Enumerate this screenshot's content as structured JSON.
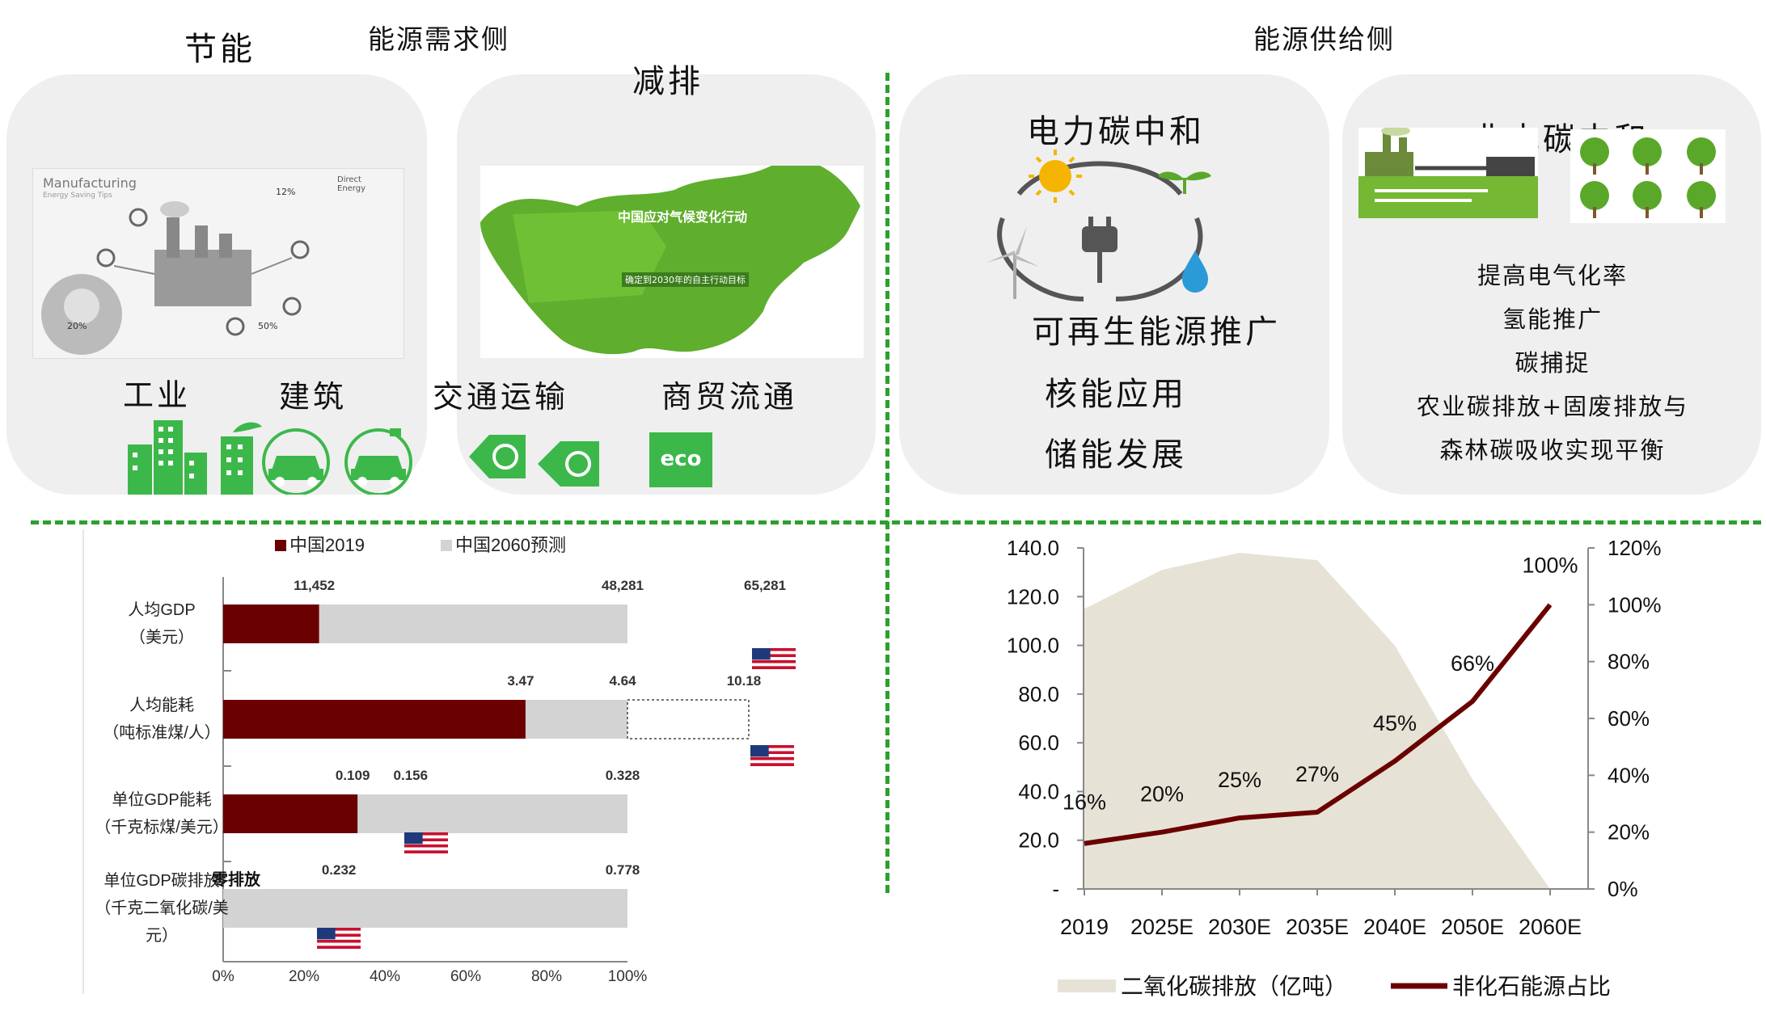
{
  "top": {
    "demand_header": "能源需求侧",
    "supply_header": "能源供给侧",
    "energy_saving": "节能",
    "emission_reduction": "减排",
    "manufacturing_title": "Manufacturing",
    "manufacturing_subtitle": "Energy Saving Tips",
    "manufacturing_brand": "Direct Energy",
    "manufacturing_pct1": "12%",
    "manufacturing_pct2": "20%",
    "manufacturing_pct3": "50%",
    "map_title": "中国应对气候变化行动",
    "map_subtitle": "确定到2030年的自主行动目标",
    "sectors": [
      "工业",
      "建筑",
      "交通运输",
      "商贸流通"
    ],
    "eco_label": "eco",
    "power_neutral": "电力碳中和",
    "renewable": "可再生能源推广",
    "nuclear": "核能应用",
    "storage": "储能发展",
    "nonpower_neutral": "非电碳中和",
    "nonpower_items": [
      "提高电气化率",
      "氢能推广",
      "碳捕捉",
      "农业碳排放+固废排放与",
      "森林碳吸收实现平衡"
    ]
  },
  "chart_data": [
    {
      "type": "bar",
      "orientation": "horizontal",
      "legend": [
        "中国2019",
        "中国2060预测"
      ],
      "legend_position": "top",
      "categories": [
        [
          "人均GDP",
          "（美元）"
        ],
        [
          "人均能耗",
          "（吨标准煤/人）"
        ],
        [
          "单位GDP能耗",
          "（千克标煤/美元）"
        ],
        [
          "单位GDP碳排放",
          "（千克二氧化碳/美",
          "元）"
        ]
      ],
      "series": [
        {
          "name": "中国2019",
          "values": [
            0.2372,
            0.7478,
            0.3323,
            0
          ],
          "color": "#6b0000"
        },
        {
          "name": "中国2060预测",
          "values": [
            1.0,
            1.0,
            1.0,
            1.0
          ],
          "color": "#d3d3d3"
        }
      ],
      "us_reference": [
        1.3521,
        1.3,
        0.4756,
        0.2982
      ],
      "outline_extension": [
        1,
        1.3,
        1,
        1
      ],
      "zero_label": "零排放",
      "value_labels": [
        {
          "text": "11,452",
          "row": 0,
          "at": 0.2372
        },
        {
          "text": "48,281",
          "row": 0,
          "at": 1.0
        },
        {
          "text": "65,281",
          "row": 0,
          "at": 1.3521
        },
        {
          "text": "3.47",
          "row": 1,
          "at": 0.7478
        },
        {
          "text": "4.64",
          "row": 1,
          "at": 1.0
        },
        {
          "text": "10.18",
          "row": 1,
          "at": 1.3
        },
        {
          "text": "0.109",
          "row": 2,
          "at": 0.3323
        },
        {
          "text": "0.156",
          "row": 2,
          "at": 0.4756
        },
        {
          "text": "0.328",
          "row": 2,
          "at": 1.0
        },
        {
          "text": "0.232",
          "row": 3,
          "at": 0.2982
        },
        {
          "text": "0.778",
          "row": 3,
          "at": 1.0
        }
      ],
      "x_ticks": [
        "0%",
        "20%",
        "40%",
        "60%",
        "80%",
        "100%"
      ],
      "xlim": [
        0,
        1
      ]
    },
    {
      "type": "area+line",
      "x": [
        "2019",
        "2025E",
        "2030E",
        "2035E",
        "2040E",
        "2050E",
        "2060E"
      ],
      "series": [
        {
          "name": "二氧化碳排放（亿吨）",
          "type": "area",
          "axis": "left",
          "values": [
            115,
            131,
            138,
            135,
            100,
            45,
            0
          ],
          "color": "#e6e3d6"
        },
        {
          "name": "非化石能源占比",
          "type": "line",
          "axis": "right",
          "values": [
            0.16,
            0.2,
            0.25,
            0.27,
            0.45,
            0.66,
            1.0
          ],
          "color": "#6b0000"
        }
      ],
      "line_labels": [
        "16%",
        "20%",
        "25%",
        "27%",
        "45%",
        "66%",
        "100%"
      ],
      "left_ticks": [
        "-",
        "20.0",
        "40.0",
        "60.0",
        "80.0",
        "100.0",
        "120.0",
        "140.0"
      ],
      "right_ticks": [
        "0%",
        "20%",
        "40%",
        "60%",
        "80%",
        "100%",
        "120%"
      ],
      "ylim_left": [
        0,
        140
      ],
      "ylim_right": [
        0,
        1.2
      ],
      "legend_position": "bottom"
    }
  ]
}
